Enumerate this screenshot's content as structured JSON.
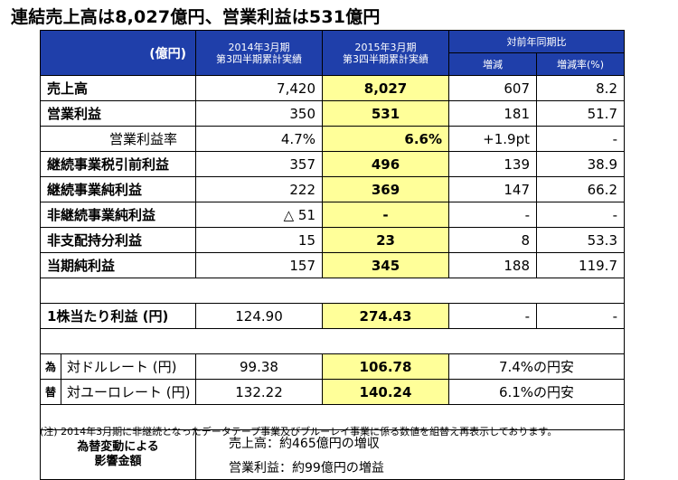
{
  "title": "連結売上高は8,027億円、営業利益は531億円",
  "header": {
    "unit": "(億円)",
    "fy2014_line1": "2014年3月期",
    "fy2014_line2": "第3四半期累計実績",
    "fy2015_line1": "2015年3月期",
    "fy2015_line2": "第3四半期累計実績",
    "yoy": "対前年同期比",
    "change": "増減",
    "change_rate": "増減率(%)"
  },
  "rows": [
    {
      "label": "売上高",
      "prev": "7,420",
      "curr": "8,027",
      "change": "607",
      "rate": "8.2"
    },
    {
      "label": "営業利益",
      "prev": "350",
      "curr": "531",
      "change": "181",
      "rate": "51.7"
    },
    {
      "label": "営業利益率",
      "prev": "4.7%",
      "curr": "6.6%",
      "change": "+1.9pt",
      "rate": "-"
    },
    {
      "label": "継続事業税引前利益",
      "prev": "357",
      "curr": "496",
      "change": "139",
      "rate": "38.9"
    },
    {
      "label": "継続事業純利益",
      "prev": "222",
      "curr": "369",
      "change": "147",
      "rate": "66.2"
    },
    {
      "label": "非継続事業純利益",
      "prev": "△ 51",
      "curr": "-",
      "change": "-",
      "rate": "-"
    },
    {
      "label": "非支配持分利益",
      "prev": "15",
      "curr": "23",
      "change": "8",
      "rate": "53.3"
    },
    {
      "label": "当期純利益",
      "prev": "157",
      "curr": "345",
      "change": "188",
      "rate": "119.7"
    }
  ],
  "eps": {
    "label": "1株当たり利益 (円)",
    "prev": "124.90",
    "curr": "274.43",
    "change": "-",
    "rate": "-"
  },
  "fx": {
    "tag_line1": "為",
    "tag_line2": "替",
    "usd": {
      "label": "対ドルレート (円)",
      "prev": "99.38",
      "curr": "106.78",
      "note": "7.4%の円安"
    },
    "eur": {
      "label": "対ユーロレート (円)",
      "prev": "132.22",
      "curr": "140.24",
      "note": "6.1%の円安"
    }
  },
  "impact": {
    "label_line1": "為替変動による",
    "label_line2": "影響金額",
    "sales": "売上高：約465億円の増収",
    "op": "営業利益：約99億円の増益"
  },
  "footnote": "(注) 2014年3月期に非継続となったデータテープ事業及びブルーレイ事業に係る数値を組替え再表示しております。",
  "colors": {
    "header_bg": "#1f3faa",
    "highlight": "#ffff99"
  }
}
